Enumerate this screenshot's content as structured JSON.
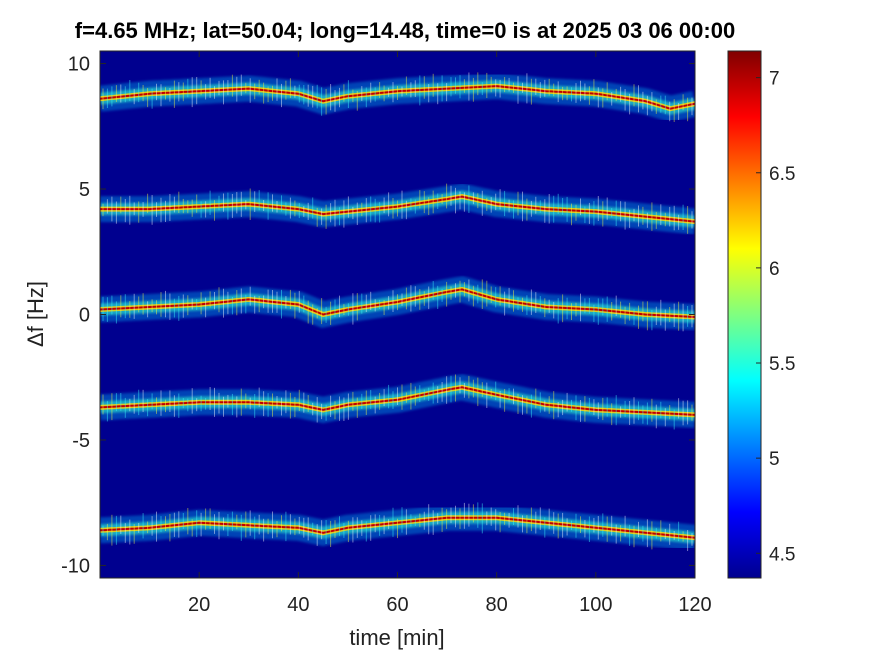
{
  "chart_data": {
    "type": "heatmap",
    "title": "f=4.65 MHz;  lat=50.04; long=14.48, time=0 is at 2025 03 06 00:00",
    "xlabel": "time [min]",
    "ylabel": "Δf [Hz]",
    "xlim": [
      0,
      120
    ],
    "ylim": [
      -10.5,
      10.5
    ],
    "xticks": [
      20,
      40,
      60,
      80,
      100,
      120
    ],
    "xtick_labels": [
      "20",
      "40",
      "60",
      "80",
      "100",
      "120"
    ],
    "yticks": [
      10,
      5,
      0,
      -5,
      -10
    ],
    "ytick_labels": [
      "10",
      "5",
      "0",
      "-5",
      "-10"
    ],
    "colorbar": {
      "colormap": "jet",
      "clim": [
        4.37,
        7.14
      ],
      "ticks": [
        4.5,
        5,
        5.5,
        6,
        6.5,
        7
      ],
      "tick_labels": [
        "4.5",
        "5",
        "5.5",
        "6",
        "6.5",
        "7"
      ]
    },
    "background_color": "#00008f",
    "traces": [
      {
        "offset_hz": 8.7,
        "time_min": [
          0,
          10,
          20,
          30,
          40,
          45,
          50,
          60,
          70,
          80,
          90,
          100,
          110,
          115,
          120
        ],
        "delta_f_hz": [
          8.6,
          8.8,
          8.9,
          9.0,
          8.8,
          8.5,
          8.7,
          8.9,
          9.0,
          9.1,
          8.9,
          8.8,
          8.5,
          8.2,
          8.4
        ]
      },
      {
        "offset_hz": 4.2,
        "time_min": [
          0,
          10,
          20,
          30,
          40,
          45,
          50,
          60,
          70,
          73,
          80,
          90,
          100,
          110,
          120
        ],
        "delta_f_hz": [
          4.2,
          4.2,
          4.3,
          4.4,
          4.2,
          4.0,
          4.1,
          4.3,
          4.6,
          4.7,
          4.4,
          4.2,
          4.1,
          3.9,
          3.7
        ]
      },
      {
        "offset_hz": 0.3,
        "time_min": [
          0,
          10,
          20,
          30,
          40,
          45,
          50,
          60,
          70,
          73,
          80,
          90,
          100,
          110,
          120
        ],
        "delta_f_hz": [
          0.2,
          0.3,
          0.4,
          0.6,
          0.4,
          0.0,
          0.2,
          0.5,
          0.9,
          1.0,
          0.6,
          0.3,
          0.2,
          0.0,
          -0.1
        ]
      },
      {
        "offset_hz": -3.7,
        "time_min": [
          0,
          10,
          20,
          30,
          40,
          45,
          50,
          60,
          70,
          73,
          80,
          90,
          100,
          110,
          120
        ],
        "delta_f_hz": [
          -3.7,
          -3.6,
          -3.5,
          -3.5,
          -3.6,
          -3.8,
          -3.6,
          -3.4,
          -3.0,
          -2.9,
          -3.2,
          -3.6,
          -3.8,
          -3.9,
          -4.0
        ]
      },
      {
        "offset_hz": -8.6,
        "time_min": [
          0,
          10,
          20,
          30,
          40,
          45,
          50,
          60,
          70,
          80,
          90,
          100,
          110,
          120
        ],
        "delta_f_hz": [
          -8.6,
          -8.5,
          -8.3,
          -8.4,
          -8.5,
          -8.7,
          -8.5,
          -8.3,
          -8.1,
          -8.1,
          -8.3,
          -8.5,
          -8.7,
          -8.9
        ]
      }
    ],
    "grid": false,
    "legend": "none"
  }
}
